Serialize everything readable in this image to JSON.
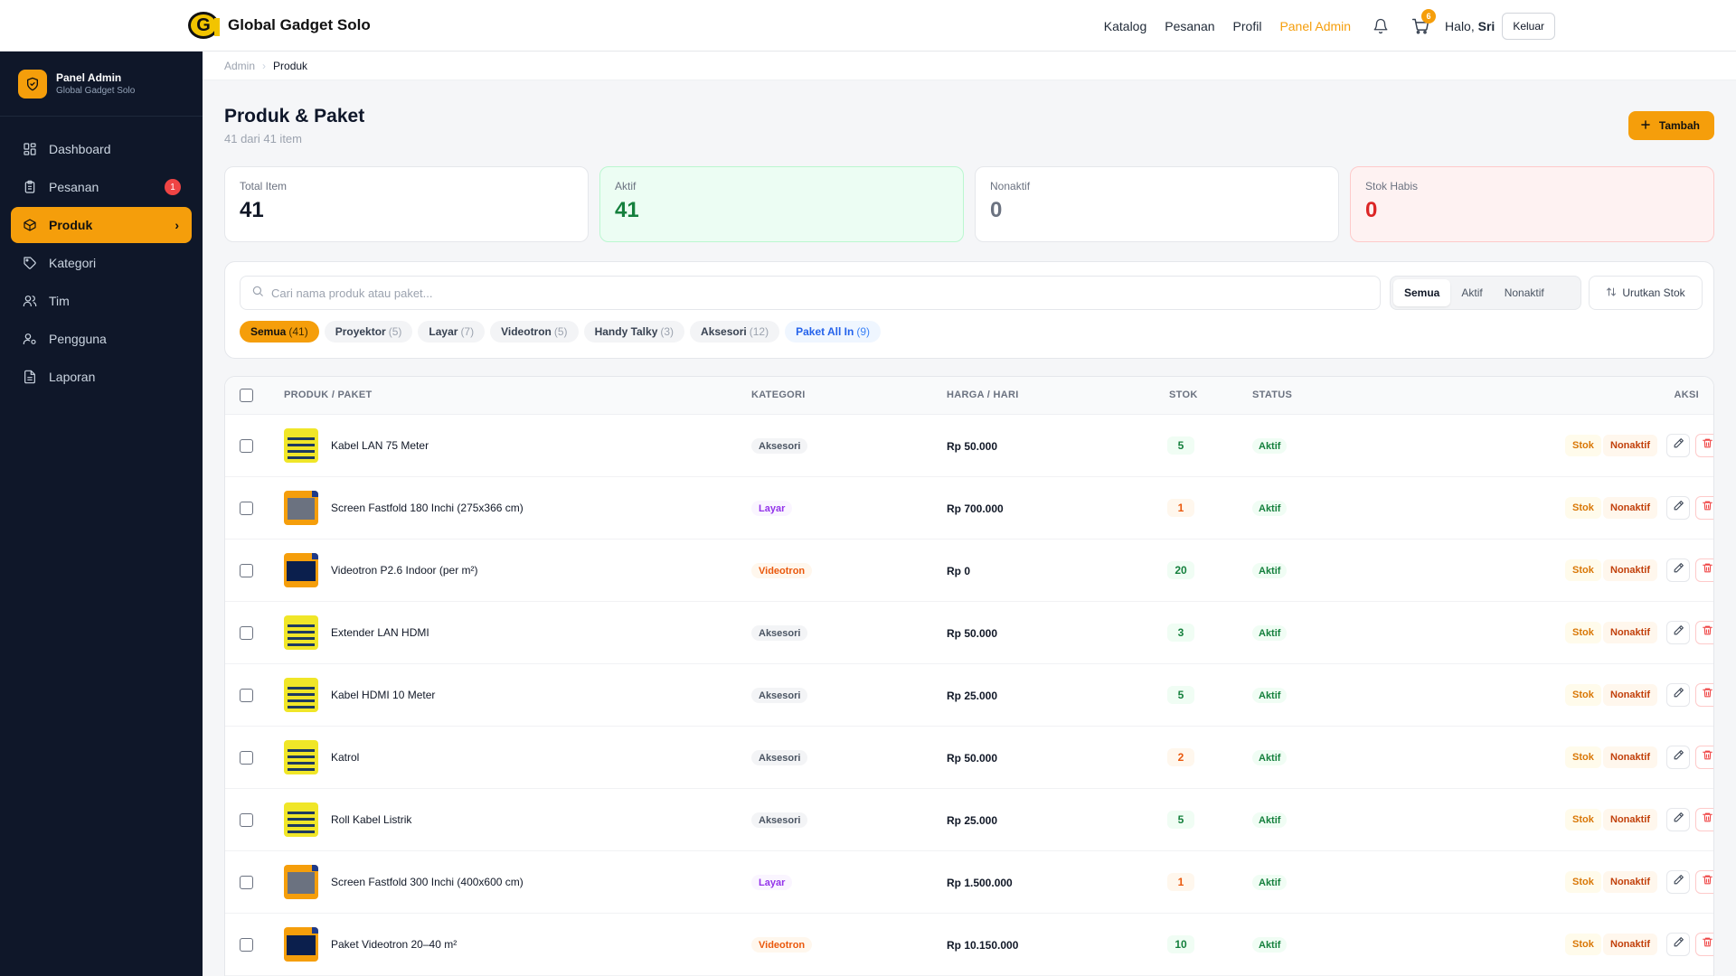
{
  "topbar": {
    "brand_name": "Global Gadget Solo",
    "brand_logo_letter": "G",
    "nav": [
      {
        "label": "Katalog"
      },
      {
        "label": "Pesanan"
      },
      {
        "label": "Profil"
      },
      {
        "label": "Panel Admin",
        "active": true
      }
    ],
    "cart_count": "6",
    "greeting_prefix": "Halo, ",
    "user_name": "Sri",
    "logout_label": "Keluar",
    "accent_color": "#f59e0b"
  },
  "sidebar": {
    "title": "Panel Admin",
    "subtitle": "Global Gadget Solo",
    "items": [
      {
        "label": "Dashboard",
        "icon": "grid-icon"
      },
      {
        "label": "Pesanan",
        "icon": "clipboard-icon",
        "badge": "1"
      },
      {
        "label": "Produk",
        "icon": "box-icon",
        "active": true
      },
      {
        "label": "Kategori",
        "icon": "tag-icon"
      },
      {
        "label": "Tim",
        "icon": "users-icon"
      },
      {
        "label": "Pengguna",
        "icon": "user-cog-icon"
      },
      {
        "label": "Laporan",
        "icon": "file-icon"
      }
    ]
  },
  "breadcrumb": {
    "parent": "Admin",
    "current": "Produk"
  },
  "page": {
    "title": "Produk & Paket",
    "subtitle": "41 dari 41 item",
    "add_label": "Tambah"
  },
  "stats": [
    {
      "label": "Total Item",
      "value": "41"
    },
    {
      "label": "Aktif",
      "value": "41"
    },
    {
      "label": "Nonaktif",
      "value": "0"
    },
    {
      "label": "Stok Habis",
      "value": "0"
    }
  ],
  "filters": {
    "search_placeholder": "Cari nama produk atau paket...",
    "segments": [
      "Semua",
      "Aktif",
      "Nonaktif"
    ],
    "sort_label": "Urutkan Stok",
    "chips": [
      {
        "label": "Semua",
        "count": "(41)"
      },
      {
        "label": "Proyektor",
        "count": "(5)"
      },
      {
        "label": "Layar",
        "count": "(7)"
      },
      {
        "label": "Videotron",
        "count": "(5)"
      },
      {
        "label": "Handy Talky",
        "count": "(3)"
      },
      {
        "label": "Aksesori",
        "count": "(12)"
      },
      {
        "label": "Paket All In",
        "count": "(9)"
      }
    ]
  },
  "table": {
    "headers": {
      "product": "PRODUK / PAKET",
      "category": "KATEGORI",
      "price": "HARGA / HARI",
      "stock": "STOK",
      "status": "STATUS",
      "actions": "AKSI"
    },
    "action_labels": {
      "stock": "Stok",
      "deactivate": "Nonaktif"
    },
    "rows": [
      {
        "name": "Kabel LAN 75 Meter",
        "category": "Aksesori",
        "price": "Rp 50.000",
        "stock": "5",
        "status": "Aktif",
        "thumb": "aksesori"
      },
      {
        "name": "Screen Fastfold 180 Inchi (275x366 cm)",
        "category": "Layar",
        "price": "Rp 700.000",
        "stock": "1",
        "status": "Aktif",
        "thumb": "screen"
      },
      {
        "name": "Videotron P2.6 Indoor (per m²)",
        "category": "Videotron",
        "price": "Rp 0",
        "stock": "20",
        "status": "Aktif",
        "thumb": "video"
      },
      {
        "name": "Extender LAN HDMI",
        "category": "Aksesori",
        "price": "Rp 50.000",
        "stock": "3",
        "status": "Aktif",
        "thumb": "aksesori"
      },
      {
        "name": "Kabel HDMI 10 Meter",
        "category": "Aksesori",
        "price": "Rp 25.000",
        "stock": "5",
        "status": "Aktif",
        "thumb": "aksesori"
      },
      {
        "name": "Katrol",
        "category": "Aksesori",
        "price": "Rp 50.000",
        "stock": "2",
        "status": "Aktif",
        "thumb": "aksesori"
      },
      {
        "name": "Roll Kabel Listrik",
        "category": "Aksesori",
        "price": "Rp 25.000",
        "stock": "5",
        "status": "Aktif",
        "thumb": "aksesori"
      },
      {
        "name": "Screen Fastfold 300 Inchi (400x600 cm)",
        "category": "Layar",
        "price": "Rp 1.500.000",
        "stock": "1",
        "status": "Aktif",
        "thumb": "screen"
      },
      {
        "name": "Paket Videotron 20–40 m²",
        "category": "Videotron",
        "price": "Rp 10.150.000",
        "stock": "10",
        "status": "Aktif",
        "thumb": "video"
      }
    ]
  }
}
